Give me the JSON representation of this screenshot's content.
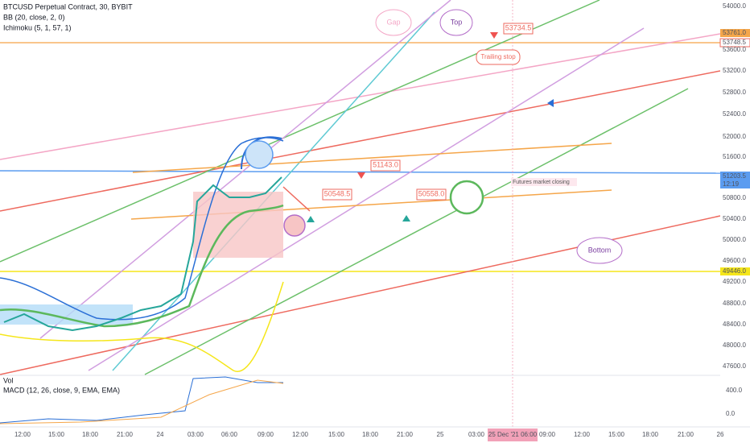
{
  "header": {
    "title": "BTCUSD Perpetual Contract, 30, BYBIT",
    "indicators": [
      "BB (20, close, 2, 0)",
      "Ichimoku (5, 1, 57, 1)"
    ]
  },
  "price_axis": [
    "54000.0",
    "53761.0",
    "53748.5",
    "53600.0",
    "53200.0",
    "52800.0",
    "52400.0",
    "52000.0",
    "51600.0",
    "51203.5",
    "12:19",
    "50800.0",
    "50400.0",
    "50000.0",
    "49600.0",
    "49446.0",
    "49200.0",
    "48800.0",
    "48400.0",
    "48000.0",
    "47600.0"
  ],
  "lower_pane": {
    "labels": [
      "Vol",
      "MACD (12, 26, close, 9, EMA, EMA)"
    ],
    "axis": [
      "400.0",
      "0.0"
    ]
  },
  "time_axis": [
    "12:00",
    "15:00",
    "18:00",
    "21:00",
    "24",
    "03:00",
    "06:00",
    "09:00",
    "12:00",
    "15:00",
    "18:00",
    "21:00",
    "25",
    "03:00",
    "25 Dec '21 06:00",
    "09:00",
    "12:00",
    "15:00",
    "18:00",
    "21:00",
    "26"
  ],
  "annotations": {
    "gap": "Gap",
    "top": "Top",
    "top_price": "53734.5",
    "trailing": "Trailing stop",
    "p1": "51143.0",
    "p2": "50548.5",
    "p3": "50558.0",
    "closing": "Futures market closing",
    "bottom": "Bottom"
  }
}
